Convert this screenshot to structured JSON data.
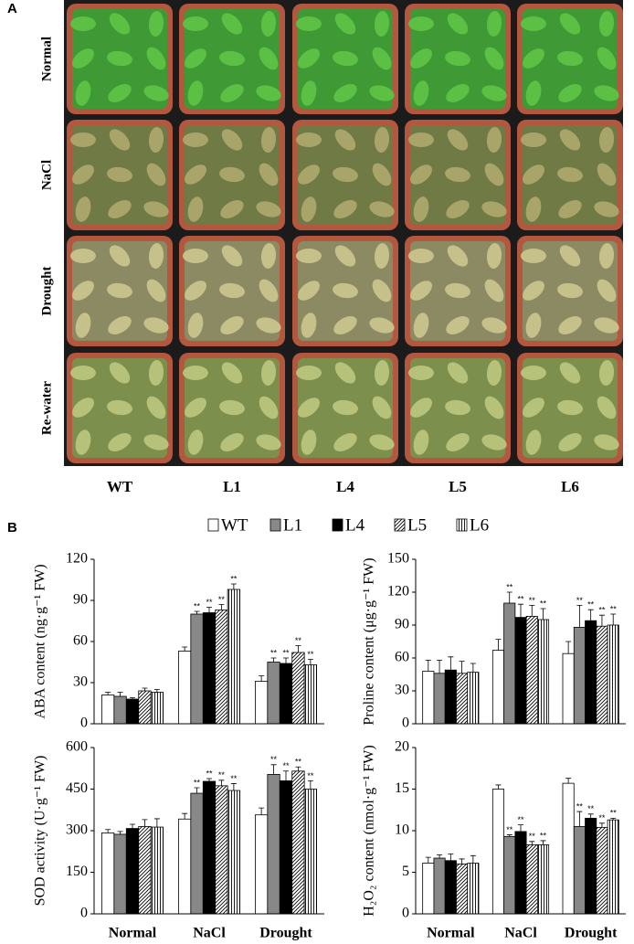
{
  "panel_a": {
    "label": "A",
    "rows": [
      "Normal",
      "NaCl",
      "Drought",
      "Re-water"
    ],
    "columns": [
      "WT",
      "L1",
      "L4",
      "L5",
      "L6"
    ]
  },
  "panel_b": {
    "label": "B"
  },
  "chart_data": [
    {
      "type": "bar",
      "y_label": "ABA content (ng·g⁻¹ FW)",
      "categories": [
        null,
        null,
        null
      ],
      "ylim": [
        0,
        120
      ],
      "yticks": [
        0,
        30,
        60,
        90,
        120
      ],
      "series": [
        {
          "name": "WT",
          "color": "#ffffff",
          "values": [
            21,
            53,
            31
          ],
          "errors": [
            2,
            3,
            4
          ],
          "annotations": [
            null,
            null,
            null
          ]
        },
        {
          "name": "L1",
          "color": "#888888",
          "values": [
            20,
            80,
            45
          ],
          "errors": [
            3,
            2,
            3
          ],
          "annotations": [
            null,
            "**",
            "**"
          ]
        },
        {
          "name": "L4",
          "color": "#000000",
          "values": [
            18,
            81,
            44
          ],
          "errors": [
            1,
            4,
            4
          ],
          "annotations": [
            null,
            "**",
            "**"
          ]
        },
        {
          "name": "L5",
          "color": "#ffffff",
          "hatch": "diagonal",
          "values": [
            24,
            83,
            52
          ],
          "errors": [
            2,
            4,
            5
          ],
          "annotations": [
            null,
            "**",
            "**"
          ]
        },
        {
          "name": "L6",
          "color": "#ffffff",
          "hatch": "vertical",
          "values": [
            23,
            98,
            43
          ],
          "errors": [
            2,
            4,
            4
          ],
          "annotations": [
            null,
            "**",
            "**"
          ]
        }
      ]
    },
    {
      "type": "bar",
      "y_label": "Proline content (μg·g⁻¹ FW)",
      "categories": [
        null,
        null,
        null
      ],
      "ylim": [
        0,
        150
      ],
      "yticks": [
        0,
        30,
        60,
        90,
        120,
        150
      ],
      "series": [
        {
          "name": "WT",
          "color": "#ffffff",
          "values": [
            48,
            67,
            64
          ],
          "errors": [
            10,
            10,
            11
          ],
          "annotations": [
            null,
            null,
            null
          ]
        },
        {
          "name": "L1",
          "color": "#888888",
          "values": [
            46,
            110,
            88
          ],
          "errors": [
            12,
            10,
            20
          ],
          "annotations": [
            null,
            "**",
            "**"
          ]
        },
        {
          "name": "L4",
          "color": "#000000",
          "values": [
            49,
            97,
            94
          ],
          "errors": [
            12,
            12,
            10
          ],
          "annotations": [
            null,
            "**",
            "**"
          ]
        },
        {
          "name": "L5",
          "color": "#ffffff",
          "hatch": "diagonal",
          "values": [
            46,
            98,
            89
          ],
          "errors": [
            11,
            10,
            10
          ],
          "annotations": [
            null,
            "**",
            "**"
          ]
        },
        {
          "name": "L6",
          "color": "#ffffff",
          "hatch": "vertical",
          "values": [
            47,
            95,
            90
          ],
          "errors": [
            8,
            10,
            10
          ],
          "annotations": [
            null,
            "**",
            "**"
          ]
        }
      ]
    },
    {
      "type": "bar",
      "y_label": "SOD activity (U·g⁻¹ FW)",
      "categories": [
        "Normal",
        "NaCl",
        "Drought"
      ],
      "ylim": [
        0,
        600
      ],
      "yticks": [
        0,
        150,
        300,
        450,
        600
      ],
      "series": [
        {
          "name": "WT",
          "color": "#ffffff",
          "values": [
            292,
            342,
            357
          ],
          "errors": [
            12,
            20,
            25
          ],
          "annotations": [
            null,
            null,
            null
          ]
        },
        {
          "name": "L1",
          "color": "#888888",
          "values": [
            287,
            435,
            503
          ],
          "errors": [
            10,
            20,
            35
          ],
          "annotations": [
            null,
            "**",
            "**"
          ]
        },
        {
          "name": "L4",
          "color": "#000000",
          "values": [
            308,
            478,
            480
          ],
          "errors": [
            15,
            10,
            35
          ],
          "annotations": [
            null,
            "**",
            "**"
          ]
        },
        {
          "name": "L5",
          "color": "#ffffff",
          "hatch": "diagonal",
          "values": [
            315,
            462,
            515
          ],
          "errors": [
            25,
            20,
            15
          ],
          "annotations": [
            null,
            "**",
            "**"
          ]
        },
        {
          "name": "L6",
          "color": "#ffffff",
          "hatch": "vertical",
          "values": [
            313,
            445,
            450
          ],
          "errors": [
            30,
            25,
            30
          ],
          "annotations": [
            null,
            "**",
            "**"
          ]
        }
      ]
    },
    {
      "type": "bar",
      "y_label": "H₂O₂ content (nmol·g⁻¹ FW)",
      "categories": [
        "Normal",
        "NaCl",
        "Drought"
      ],
      "ylim": [
        0,
        20
      ],
      "yticks": [
        0,
        5,
        10,
        15,
        20
      ],
      "series": [
        {
          "name": "WT",
          "color": "#ffffff",
          "values": [
            6.1,
            15.0,
            15.7
          ],
          "errors": [
            0.7,
            0.5,
            0.6
          ],
          "annotations": [
            null,
            null,
            null
          ]
        },
        {
          "name": "L1",
          "color": "#888888",
          "values": [
            6.7,
            9.3,
            10.5
          ],
          "errors": [
            0.4,
            0.2,
            1.8
          ],
          "annotations": [
            null,
            "**",
            "**"
          ]
        },
        {
          "name": "L4",
          "color": "#000000",
          "values": [
            6.4,
            9.9,
            11.5
          ],
          "errors": [
            0.8,
            0.8,
            0.5
          ],
          "annotations": [
            null,
            "**",
            "**"
          ]
        },
        {
          "name": "L5",
          "color": "#ffffff",
          "hatch": "diagonal",
          "values": [
            6.0,
            8.3,
            10.4
          ],
          "errors": [
            0.6,
            0.4,
            0.5
          ],
          "annotations": [
            null,
            "**",
            "**"
          ]
        },
        {
          "name": "L6",
          "color": "#ffffff",
          "hatch": "vertical",
          "values": [
            6.1,
            8.3,
            11.3
          ],
          "errors": [
            0.9,
            0.5,
            0.2
          ],
          "annotations": [
            null,
            "**",
            "**"
          ]
        }
      ]
    }
  ]
}
